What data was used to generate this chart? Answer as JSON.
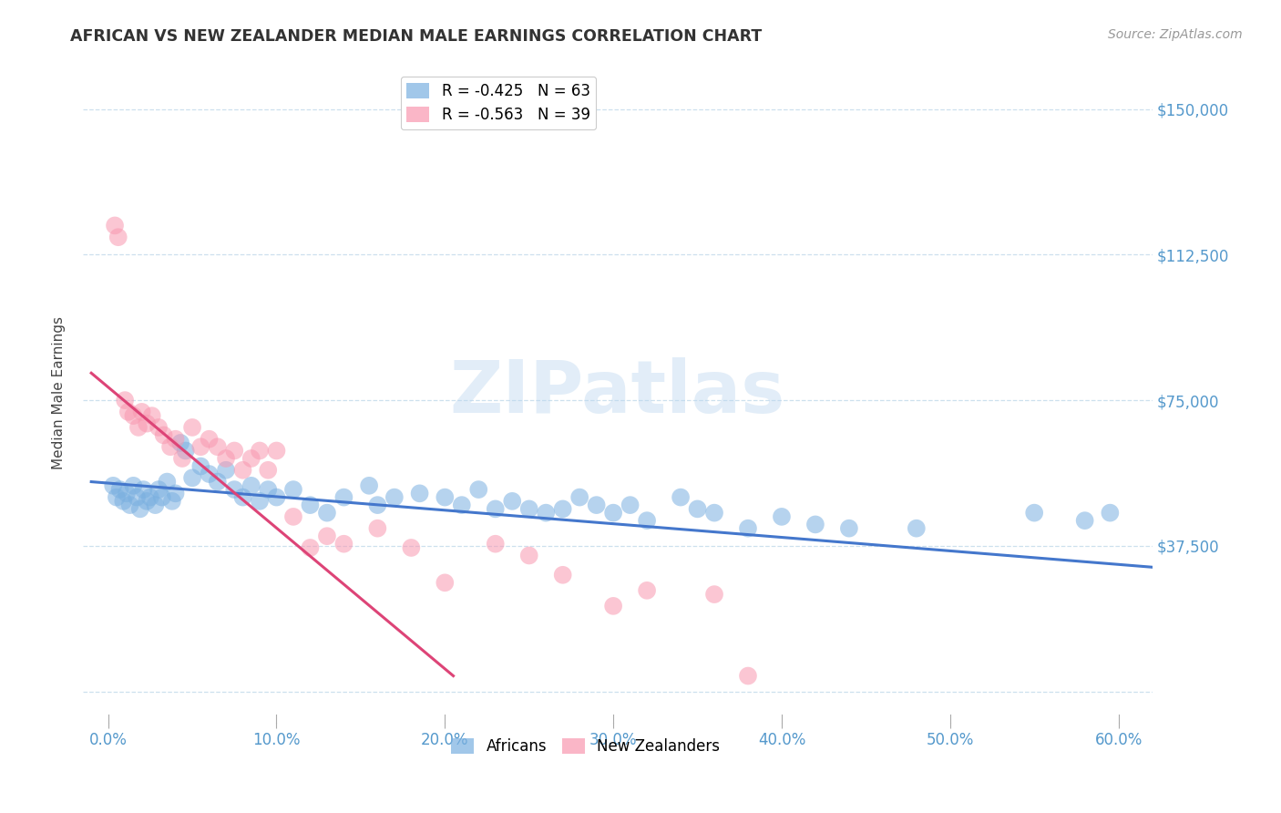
{
  "title": "AFRICAN VS NEW ZEALANDER MEDIAN MALE EARNINGS CORRELATION CHART",
  "source": "Source: ZipAtlas.com",
  "ylabel": "Median Male Earnings",
  "ytick_vals": [
    0,
    37500,
    75000,
    112500,
    150000
  ],
  "ytick_labels": [
    "",
    "$37,500",
    "$75,000",
    "$112,500",
    "$150,000"
  ],
  "xlabel_vals": [
    0.0,
    10.0,
    20.0,
    30.0,
    40.0,
    50.0,
    60.0
  ],
  "xlim": [
    -1.5,
    62
  ],
  "ylim": [
    -8000,
    162000
  ],
  "blue_color": "#7ab0e0",
  "pink_color": "#f898b0",
  "trend_blue": "#4477cc",
  "trend_pink": "#dd4477",
  "watermark": "ZIPatlas",
  "legend_blue_r": "R = -0.425",
  "legend_blue_n": "N = 63",
  "legend_pink_r": "R = -0.563",
  "legend_pink_n": "N = 39",
  "africans_x": [
    0.3,
    0.5,
    0.7,
    0.9,
    1.1,
    1.3,
    1.5,
    1.7,
    1.9,
    2.1,
    2.3,
    2.5,
    2.8,
    3.0,
    3.2,
    3.5,
    3.8,
    4.0,
    4.3,
    4.6,
    5.0,
    5.5,
    6.0,
    6.5,
    7.0,
    7.5,
    8.0,
    8.5,
    9.0,
    9.5,
    10.0,
    11.0,
    12.0,
    13.0,
    14.0,
    15.5,
    16.0,
    17.0,
    18.5,
    20.0,
    21.0,
    22.0,
    23.0,
    24.0,
    25.0,
    26.0,
    27.0,
    28.0,
    29.0,
    30.0,
    31.0,
    32.0,
    34.0,
    35.0,
    36.0,
    38.0,
    40.0,
    42.0,
    44.0,
    48.0,
    55.0,
    58.0,
    59.5
  ],
  "africans_y": [
    53000,
    50000,
    52000,
    49000,
    51000,
    48000,
    53000,
    50000,
    47000,
    52000,
    49000,
    50000,
    48000,
    52000,
    50000,
    54000,
    49000,
    51000,
    64000,
    62000,
    55000,
    58000,
    56000,
    54000,
    57000,
    52000,
    50000,
    53000,
    49000,
    52000,
    50000,
    52000,
    48000,
    46000,
    50000,
    53000,
    48000,
    50000,
    51000,
    50000,
    48000,
    52000,
    47000,
    49000,
    47000,
    46000,
    47000,
    50000,
    48000,
    46000,
    48000,
    44000,
    50000,
    47000,
    46000,
    42000,
    45000,
    43000,
    42000,
    42000,
    46000,
    44000,
    46000
  ],
  "nz_x": [
    0.4,
    0.6,
    1.0,
    1.2,
    1.5,
    1.8,
    2.0,
    2.3,
    2.6,
    3.0,
    3.3,
    3.7,
    4.0,
    4.4,
    5.0,
    5.5,
    6.0,
    6.5,
    7.0,
    7.5,
    8.0,
    8.5,
    9.0,
    9.5,
    10.0,
    11.0,
    12.0,
    13.0,
    14.0,
    16.0,
    18.0,
    20.0,
    23.0,
    25.0,
    27.0,
    30.0,
    32.0,
    36.0,
    38.0
  ],
  "nz_y": [
    120000,
    117000,
    75000,
    72000,
    71000,
    68000,
    72000,
    69000,
    71000,
    68000,
    66000,
    63000,
    65000,
    60000,
    68000,
    63000,
    65000,
    63000,
    60000,
    62000,
    57000,
    60000,
    62000,
    57000,
    62000,
    45000,
    37000,
    40000,
    38000,
    42000,
    37000,
    28000,
    38000,
    35000,
    30000,
    22000,
    26000,
    25000,
    4000
  ],
  "blue_trend_x": [
    -1,
    62
  ],
  "blue_trend_y": [
    54000,
    32000
  ],
  "pink_trend_x": [
    -1,
    20.5
  ],
  "pink_trend_y": [
    82000,
    4000
  ]
}
